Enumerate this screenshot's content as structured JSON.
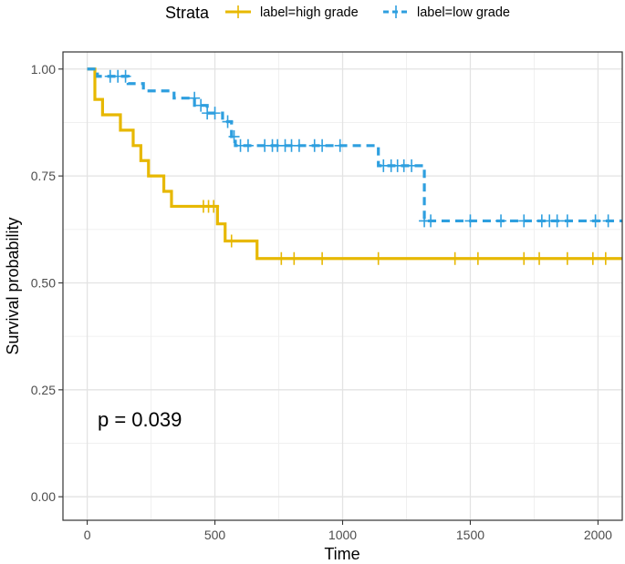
{
  "chart_data": {
    "type": "line",
    "subtype": "kaplan-meier",
    "xlabel": "Time",
    "ylabel": "Survival probability",
    "xlim": [
      -95,
      2095
    ],
    "ylim": [
      -0.055,
      1.04
    ],
    "x_ticks": [
      0,
      500,
      1000,
      1500,
      2000
    ],
    "x_tick_labels": [
      "0",
      "500",
      "1000",
      "1500",
      "2000"
    ],
    "y_ticks": [
      0,
      0.25,
      0.5,
      0.75,
      1.0
    ],
    "y_tick_labels": [
      "0.00",
      "0.25",
      "0.50",
      "0.75",
      "1.00"
    ],
    "grid": true,
    "legend": {
      "title": "Strata",
      "position": "top"
    },
    "annotation": "p = 0.039",
    "series": [
      {
        "name": "label=high grade",
        "color": "#E7B800",
        "dash": "solid",
        "steps": [
          [
            0,
            1.0
          ],
          [
            30,
            0.929
          ],
          [
            60,
            0.893
          ],
          [
            130,
            0.857
          ],
          [
            180,
            0.821
          ],
          [
            210,
            0.786
          ],
          [
            240,
            0.75
          ],
          [
            300,
            0.714
          ],
          [
            330,
            0.679
          ],
          [
            510,
            0.638
          ],
          [
            540,
            0.598
          ],
          [
            665,
            0.557
          ],
          [
            2095,
            0.557
          ]
        ],
        "censored": [
          [
            455,
            0.679
          ],
          [
            475,
            0.679
          ],
          [
            495,
            0.679
          ],
          [
            565,
            0.598
          ],
          [
            760,
            0.557
          ],
          [
            810,
            0.557
          ],
          [
            920,
            0.557
          ],
          [
            1140,
            0.557
          ],
          [
            1440,
            0.557
          ],
          [
            1530,
            0.557
          ],
          [
            1710,
            0.557
          ],
          [
            1770,
            0.557
          ],
          [
            1880,
            0.557
          ],
          [
            1980,
            0.557
          ],
          [
            2030,
            0.557
          ]
        ]
      },
      {
        "name": "label=low grade",
        "color": "#2E9FDF",
        "dash": "dashed",
        "steps": [
          [
            0,
            1.0
          ],
          [
            40,
            0.983
          ],
          [
            160,
            0.966
          ],
          [
            220,
            0.949
          ],
          [
            340,
            0.932
          ],
          [
            420,
            0.915
          ],
          [
            470,
            0.897
          ],
          [
            530,
            0.877
          ],
          [
            565,
            0.842
          ],
          [
            580,
            0.821
          ],
          [
            1140,
            0.774
          ],
          [
            1320,
            0.645
          ],
          [
            2095,
            0.645
          ]
        ],
        "censored": [
          [
            90,
            0.983
          ],
          [
            120,
            0.983
          ],
          [
            150,
            0.983
          ],
          [
            420,
            0.932
          ],
          [
            445,
            0.915
          ],
          [
            470,
            0.897
          ],
          [
            500,
            0.897
          ],
          [
            550,
            0.877
          ],
          [
            575,
            0.842
          ],
          [
            600,
            0.821
          ],
          [
            630,
            0.821
          ],
          [
            695,
            0.821
          ],
          [
            725,
            0.821
          ],
          [
            745,
            0.821
          ],
          [
            775,
            0.821
          ],
          [
            800,
            0.821
          ],
          [
            830,
            0.821
          ],
          [
            890,
            0.821
          ],
          [
            920,
            0.821
          ],
          [
            990,
            0.821
          ],
          [
            1160,
            0.774
          ],
          [
            1190,
            0.774
          ],
          [
            1215,
            0.774
          ],
          [
            1240,
            0.774
          ],
          [
            1270,
            0.774
          ],
          [
            1320,
            0.645
          ],
          [
            1345,
            0.645
          ],
          [
            1500,
            0.645
          ],
          [
            1620,
            0.645
          ],
          [
            1710,
            0.645
          ],
          [
            1780,
            0.645
          ],
          [
            1810,
            0.645
          ],
          [
            1840,
            0.645
          ],
          [
            1880,
            0.645
          ],
          [
            1990,
            0.645
          ],
          [
            2040,
            0.645
          ]
        ]
      }
    ]
  }
}
